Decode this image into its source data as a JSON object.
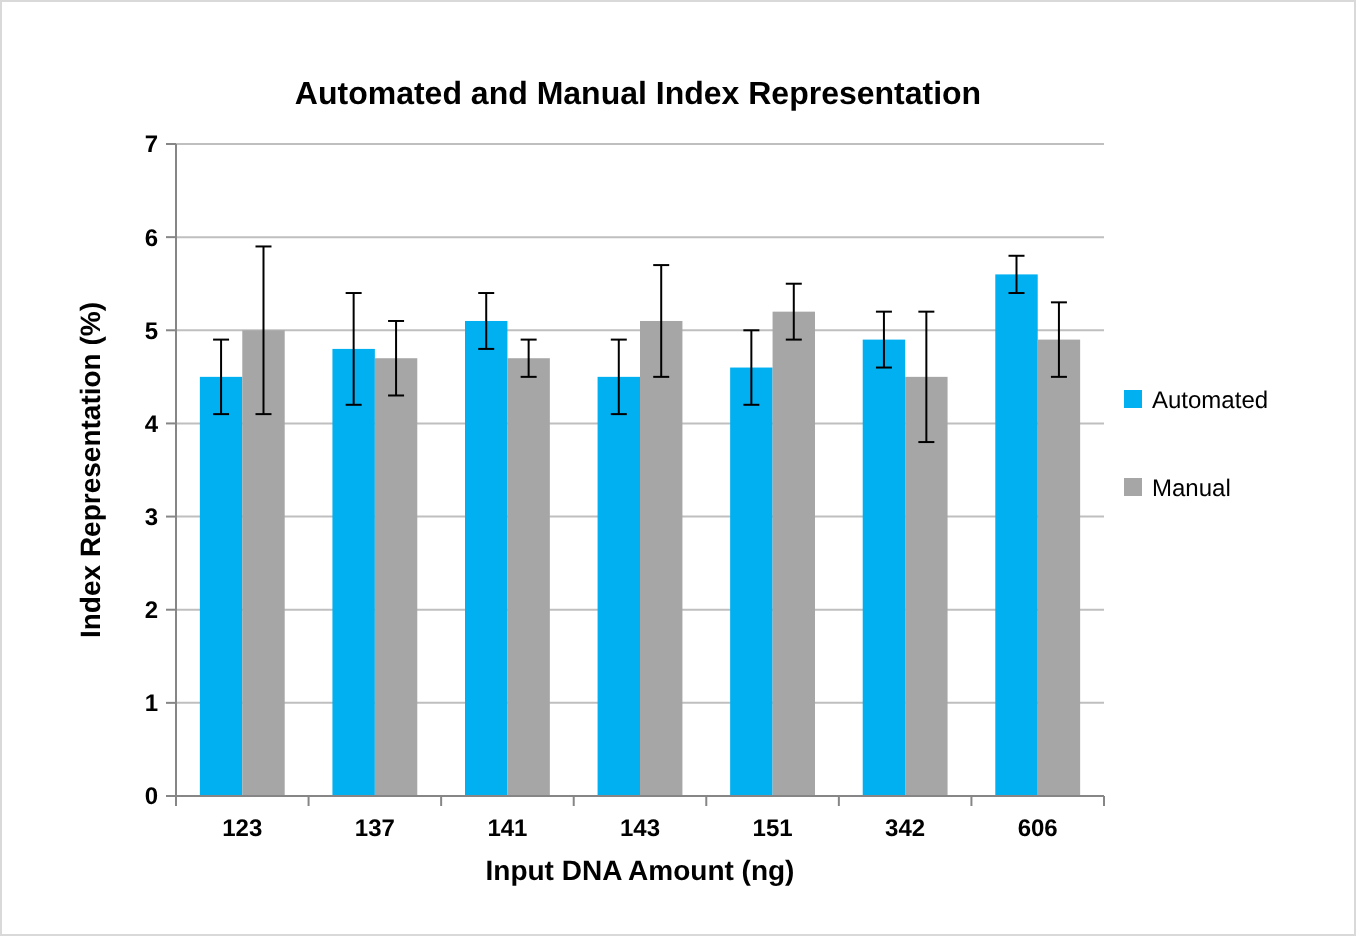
{
  "chart_data": {
    "type": "bar",
    "title": "Automated and Manual Index Representation",
    "xlabel": "Input DNA Amount (ng)",
    "ylabel": "Index Representation (%)",
    "categories": [
      "123",
      "137",
      "141",
      "143",
      "151",
      "342",
      "606"
    ],
    "series": [
      {
        "name": "Automated",
        "color": "#00b0f0",
        "values": [
          4.5,
          4.8,
          5.1,
          4.5,
          4.6,
          4.9,
          5.6
        ],
        "errors": [
          0.4,
          0.6,
          0.3,
          0.4,
          0.4,
          0.3,
          0.2
        ]
      },
      {
        "name": "Manual",
        "color": "#a6a6a6",
        "values": [
          5.0,
          4.7,
          4.7,
          5.1,
          5.2,
          4.5,
          4.9
        ],
        "errors": [
          0.9,
          0.4,
          0.2,
          0.6,
          0.3,
          0.7,
          0.4
        ]
      }
    ],
    "ylim": [
      0,
      7
    ],
    "yticks": [
      0,
      1,
      2,
      3,
      4,
      5,
      6,
      7
    ],
    "grid": "y",
    "legend": "right"
  }
}
